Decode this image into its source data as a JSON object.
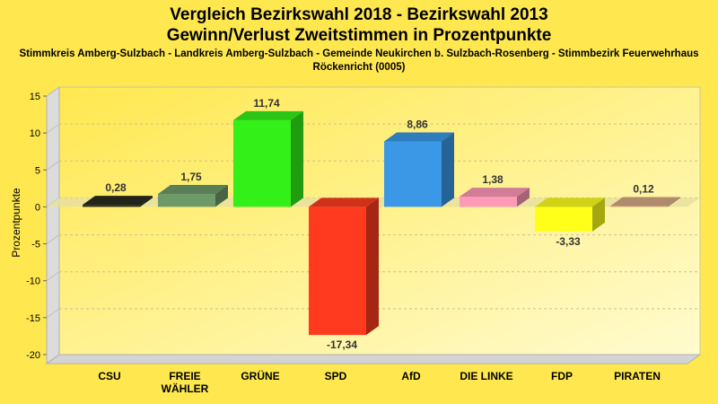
{
  "chart_data": {
    "type": "bar",
    "title": "Vergleich Bezirkswahl 2018 - Bezirkswahl 2013",
    "subtitle": "Gewinn/Verlust Zweitstimmen in Prozentpunkte",
    "caption_line1": "Stimmkreis Amberg-Sulzbach - Landkreis Amberg-Sulzbach - Gemeinde Neukirchen b. Sulzbach-Rosenberg - Stimmbezirk Feuerwehrhaus",
    "caption_line2": "Röckenricht (0005)",
    "ylabel": "Prozentpunkte",
    "xlabel": "",
    "ylim": [
      -20,
      15
    ],
    "yticks": [
      -20,
      -15,
      -10,
      -5,
      0,
      5,
      10,
      15
    ],
    "grid": true,
    "categories": [
      [
        "CSU"
      ],
      [
        "FREIE",
        "WÄHLER"
      ],
      [
        "GRÜNE"
      ],
      [
        "SPD"
      ],
      [
        "AfD"
      ],
      [
        "DIE LINKE"
      ],
      [
        "FDP"
      ],
      [
        "PIRATEN"
      ]
    ],
    "values": [
      0.28,
      1.75,
      11.74,
      -17.34,
      8.86,
      1.38,
      -3.33,
      0.12
    ],
    "value_labels": [
      "0,28",
      "1,75",
      "11,74",
      "-17,34",
      "8,86",
      "1,38",
      "-3,33",
      "0,12"
    ],
    "colors": [
      "#2b2b1f",
      "#6e9a6a",
      "#33f019",
      "#ff3a1e",
      "#3a98e6",
      "#ff99b8",
      "#ffff1a",
      "#d6a884"
    ]
  }
}
